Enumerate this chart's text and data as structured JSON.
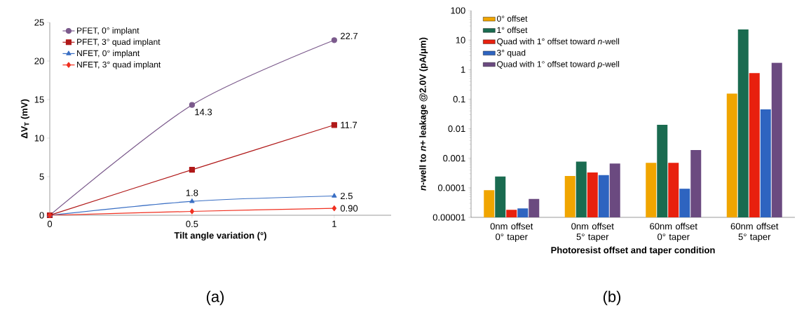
{
  "chart_data": [
    {
      "type": "line",
      "xlabel": "Tilt angle variation (°)",
      "ylabel": "ΔV$_{T}$ (mV)",
      "x": [
        0,
        0.5,
        1
      ],
      "xlim": [
        0,
        1.2
      ],
      "xticks": [
        0,
        0.5,
        1
      ],
      "ylim": [
        0,
        25
      ],
      "yticks": [
        0,
        5,
        10,
        15,
        20,
        25
      ],
      "legend": "top left",
      "grid": false,
      "annotations": [
        "(a)"
      ],
      "series": [
        {
          "name": "PFET, 0° implant",
          "color": "#7b5a8c",
          "marker": "circle",
          "values": [
            0,
            14.3,
            22.7
          ],
          "value_labels": [
            null,
            "14.3",
            "22.7"
          ]
        },
        {
          "name": "PFET, 3° quad implant",
          "color": "#b01818",
          "marker": "square",
          "values": [
            0,
            5.9,
            11.7
          ],
          "value_labels": [
            null,
            null,
            "11.7"
          ]
        },
        {
          "name": "NFET, 0° implant",
          "color": "#3a6fc4",
          "marker": "triangle",
          "values": [
            0,
            1.8,
            2.5
          ],
          "value_labels": [
            null,
            "1.8",
            "2.5"
          ]
        },
        {
          "name": "NFET, 3° quad implant",
          "color": "#f03020",
          "marker": "diamond",
          "values": [
            0,
            0.5,
            0.9
          ],
          "value_labels": [
            null,
            null,
            "0.90"
          ]
        }
      ]
    },
    {
      "type": "bar",
      "xlabel": "Photoresist offset and taper condition",
      "ylabel": "*n*-well to *n*+ leakage @2.0V (pA/μm)",
      "categories": [
        "0nm offset 0° taper",
        "0nm offset 5° taper",
        "60nm offset 0° taper",
        "60nm offset 5° taper"
      ],
      "log": "y",
      "ylim": [
        1e-05,
        100
      ],
      "yticks": [
        {
          "value": 1e-05,
          "label": "0.00001"
        },
        {
          "value": 0.0001,
          "label": "0.0001"
        },
        {
          "value": 0.001,
          "label": "0.001"
        },
        {
          "value": 0.01,
          "label": "0.01"
        },
        {
          "value": 0.1,
          "label": "0.1"
        },
        {
          "value": 1,
          "label": "1"
        },
        {
          "value": 10,
          "label": "10"
        },
        {
          "value": 100,
          "label": "100"
        }
      ],
      "legend": "top left",
      "grid": false,
      "annotations": [
        "(b)"
      ],
      "series": [
        {
          "name": "0° offset",
          "color": "#f0a500",
          "values": [
            8.3e-05,
            0.00025,
            0.0007,
            0.155
          ]
        },
        {
          "name": "1° offset",
          "color": "#1a6b50",
          "values": [
            0.00024,
            0.00077,
            0.0135,
            23
          ]
        },
        {
          "name": "Quad with 1° offset toward *n*-well",
          "color": "#e8200e",
          "values": [
            1.8e-05,
            0.00033,
            0.0007,
            0.76
          ]
        },
        {
          "name": "3° quad",
          "color": "#2e64c0",
          "values": [
            2e-05,
            0.00027,
            9.3e-05,
            0.045
          ]
        },
        {
          "name": "Quad with 1° offset toward *p*-well",
          "color": "#6b4a80",
          "values": [
            4.2e-05,
            0.00066,
            0.0019,
            1.7
          ]
        }
      ]
    }
  ]
}
